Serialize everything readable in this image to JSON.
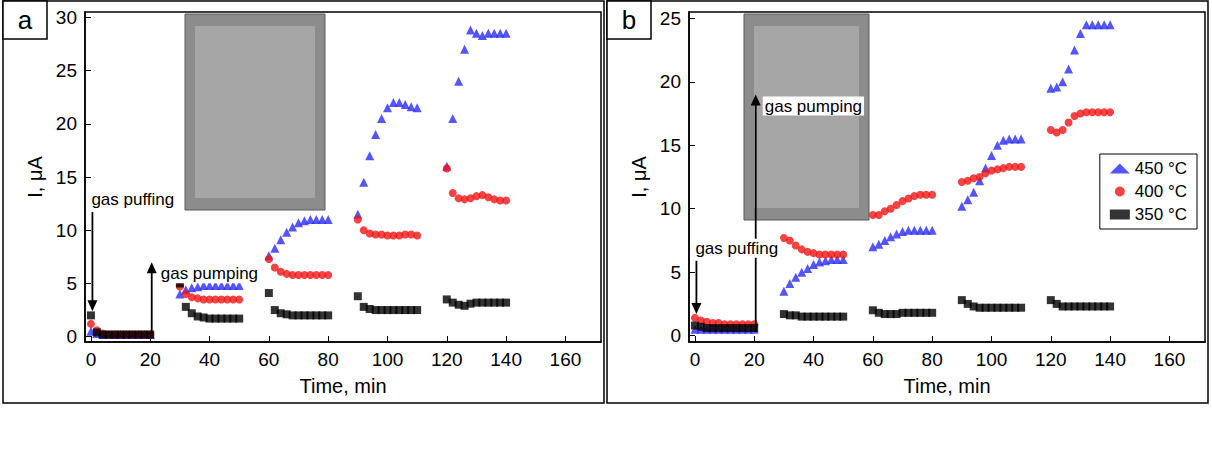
{
  "chart_data": [
    {
      "type": "scatter",
      "title": "a",
      "x_label": "Time, min",
      "y_label": "I, μA",
      "xlim": [
        -2,
        172
      ],
      "xticks": [
        0,
        20,
        40,
        60,
        80,
        100,
        120,
        140,
        160
      ],
      "ylim": [
        -0.5,
        30.5
      ],
      "yticks": [
        0,
        5,
        10,
        15,
        20,
        25,
        30
      ],
      "grid": false,
      "x": [
        0,
        2,
        4,
        6,
        8,
        10,
        12,
        14,
        16,
        18,
        20,
        30,
        32,
        34,
        36,
        38,
        40,
        42,
        44,
        46,
        48,
        50,
        60,
        62,
        64,
        66,
        68,
        70,
        72,
        74,
        76,
        78,
        80,
        90,
        92,
        94,
        96,
        98,
        100,
        102,
        104,
        106,
        108,
        110,
        120,
        122,
        124,
        126,
        128,
        130,
        132,
        134,
        136,
        138,
        140
      ],
      "series": [
        {
          "name": "450 °C",
          "color": "#2a2aff",
          "marker": "triangle",
          "values": [
            0.5,
            0.3,
            0.2,
            0.2,
            0.2,
            0.2,
            0.2,
            0.2,
            0.2,
            0.2,
            0.2,
            4.0,
            4.4,
            4.6,
            4.7,
            4.8,
            4.8,
            4.8,
            4.8,
            4.8,
            4.8,
            4.8,
            7.6,
            8.3,
            9.1,
            9.8,
            10.3,
            10.7,
            10.9,
            11.0,
            11.0,
            11.0,
            11.0,
            11.5,
            14.5,
            17.0,
            19.0,
            20.5,
            21.5,
            22.0,
            22.0,
            21.8,
            21.6,
            21.5,
            16.0,
            20.5,
            24.0,
            27.0,
            28.8,
            28.5,
            28.3,
            28.5,
            28.5,
            28.5,
            28.5
          ]
        },
        {
          "name": "400 °C",
          "color": "#f01414",
          "marker": "circle",
          "values": [
            1.2,
            0.6,
            0.3,
            0.2,
            0.2,
            0.2,
            0.2,
            0.2,
            0.2,
            0.2,
            0.2,
            4.7,
            4.0,
            3.7,
            3.6,
            3.5,
            3.5,
            3.5,
            3.5,
            3.5,
            3.5,
            3.5,
            7.3,
            6.5,
            6.1,
            5.9,
            5.8,
            5.8,
            5.8,
            5.8,
            5.8,
            5.8,
            5.8,
            11.0,
            10.0,
            9.7,
            9.6,
            9.6,
            9.5,
            9.5,
            9.5,
            9.6,
            9.6,
            9.5,
            15.8,
            13.5,
            13.0,
            12.9,
            13.0,
            13.2,
            13.3,
            13.1,
            12.9,
            12.8,
            12.8
          ]
        },
        {
          "name": "350 °C",
          "color": "#000000",
          "marker": "square",
          "values": [
            2.0,
            0.4,
            0.2,
            0.2,
            0.2,
            0.2,
            0.2,
            0.2,
            0.2,
            0.2,
            0.2,
            5.0,
            2.8,
            2.2,
            1.9,
            1.8,
            1.7,
            1.7,
            1.7,
            1.7,
            1.7,
            1.7,
            4.1,
            2.5,
            2.2,
            2.1,
            2.0,
            2.0,
            2.0,
            2.0,
            2.0,
            2.0,
            2.0,
            3.8,
            2.8,
            2.6,
            2.5,
            2.5,
            2.5,
            2.5,
            2.5,
            2.5,
            2.5,
            2.5,
            3.5,
            3.2,
            3.0,
            2.9,
            3.1,
            3.2,
            3.2,
            3.2,
            3.2,
            3.2,
            3.2
          ]
        }
      ],
      "annotations": [
        {
          "text": "gas puffing",
          "x": 0.5,
          "y_from": 11.7,
          "y_to": 2.4
        },
        {
          "text": "gas pumping",
          "x": 20.5,
          "y_from": 0.3,
          "y_to": 7.0
        }
      ]
    },
    {
      "type": "scatter",
      "title": "b",
      "x_label": "Time, min",
      "y_label": "I, μA",
      "xlim": [
        -2,
        172
      ],
      "xticks": [
        0,
        20,
        40,
        60,
        80,
        100,
        120,
        140,
        160
      ],
      "ylim": [
        -0.5,
        25.5
      ],
      "yticks": [
        0,
        5,
        10,
        15,
        20,
        25
      ],
      "grid": false,
      "legend": "right",
      "x": [
        0,
        2,
        4,
        6,
        8,
        10,
        12,
        14,
        16,
        18,
        20,
        30,
        32,
        34,
        36,
        38,
        40,
        42,
        44,
        46,
        48,
        50,
        60,
        62,
        64,
        66,
        68,
        70,
        72,
        74,
        76,
        78,
        80,
        90,
        92,
        94,
        96,
        98,
        100,
        102,
        104,
        106,
        108,
        110,
        120,
        122,
        124,
        126,
        128,
        130,
        132,
        134,
        136,
        138,
        140
      ],
      "series": [
        {
          "name": "450 °C",
          "color": "#2a2aff",
          "marker": "triangle",
          "values": [
            0.5,
            0.5,
            0.5,
            0.5,
            0.5,
            0.5,
            0.5,
            0.5,
            0.5,
            0.5,
            0.5,
            3.5,
            4.1,
            4.6,
            5.0,
            5.3,
            5.6,
            5.8,
            5.9,
            6.0,
            6.0,
            6.0,
            7.0,
            7.2,
            7.5,
            7.8,
            8.0,
            8.2,
            8.3,
            8.3,
            8.3,
            8.3,
            8.3,
            10.2,
            10.7,
            11.3,
            12.2,
            13.2,
            14.2,
            15.0,
            15.4,
            15.5,
            15.5,
            15.5,
            19.5,
            19.6,
            20.0,
            21.0,
            22.5,
            23.8,
            24.5,
            24.5,
            24.5,
            24.5,
            24.5
          ]
        },
        {
          "name": "400 °C",
          "color": "#f01414",
          "marker": "circle",
          "values": [
            1.4,
            1.2,
            1.1,
            1.0,
            1.0,
            0.9,
            0.9,
            0.9,
            0.9,
            0.9,
            0.9,
            7.7,
            7.5,
            7.1,
            6.8,
            6.6,
            6.5,
            6.4,
            6.4,
            6.4,
            6.4,
            6.4,
            9.5,
            9.5,
            9.8,
            10.0,
            10.3,
            10.6,
            10.8,
            11.0,
            11.1,
            11.1,
            11.1,
            12.1,
            12.2,
            12.4,
            12.5,
            12.8,
            13.0,
            13.1,
            13.2,
            13.3,
            13.3,
            13.3,
            16.2,
            16.0,
            16.2,
            16.8,
            17.3,
            17.5,
            17.6,
            17.6,
            17.6,
            17.6,
            17.6
          ]
        },
        {
          "name": "350 °C",
          "color": "#000000",
          "marker": "square",
          "values": [
            0.8,
            0.7,
            0.6,
            0.6,
            0.6,
            0.6,
            0.6,
            0.6,
            0.6,
            0.6,
            0.6,
            1.7,
            1.6,
            1.6,
            1.5,
            1.5,
            1.5,
            1.5,
            1.5,
            1.5,
            1.5,
            1.5,
            2.0,
            1.8,
            1.7,
            1.7,
            1.7,
            1.8,
            1.8,
            1.8,
            1.8,
            1.8,
            1.8,
            2.8,
            2.5,
            2.3,
            2.2,
            2.2,
            2.2,
            2.2,
            2.2,
            2.2,
            2.2,
            2.2,
            2.8,
            2.5,
            2.3,
            2.3,
            2.3,
            2.3,
            2.3,
            2.3,
            2.3,
            2.3,
            2.3
          ]
        }
      ],
      "annotations": [
        {
          "text": "gas puffing",
          "x": 0.5,
          "y_from": 5.9,
          "y_to": 1.7
        },
        {
          "text": "gas pumping",
          "x": 20.5,
          "y_from": 0.3,
          "y_to": 19.0
        }
      ]
    }
  ]
}
